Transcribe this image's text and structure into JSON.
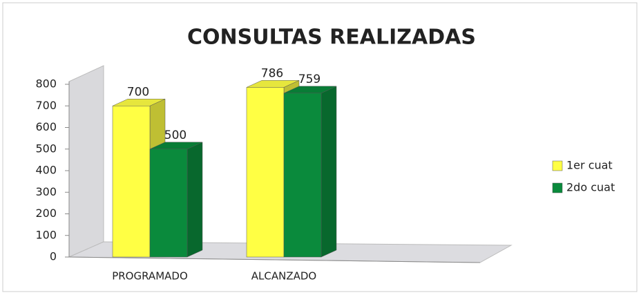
{
  "chart_data": {
    "type": "bar3d",
    "title": "CONSULTAS REALIZADAS",
    "categories": [
      "PROGRAMADO",
      "ALCANZADO"
    ],
    "series": [
      {
        "name": "1er cuat",
        "color": "#ffff44",
        "values": [
          700,
          786
        ]
      },
      {
        "name": "2do cuat",
        "color": "#0a8a3c",
        "values": [
          500,
          759
        ]
      }
    ],
    "ylim": [
      0,
      800
    ],
    "yticks": [
      0,
      100,
      200,
      300,
      400,
      500,
      600,
      700,
      800
    ],
    "legend": "right"
  }
}
